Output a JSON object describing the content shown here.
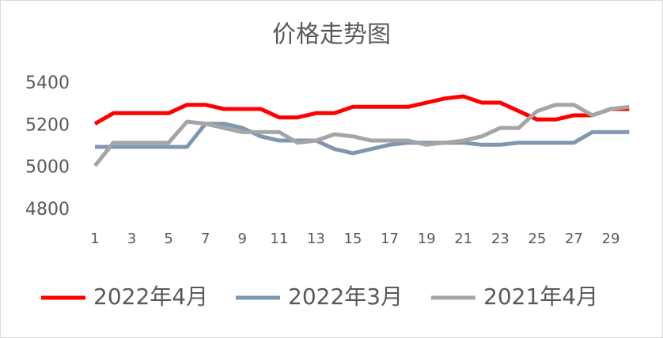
{
  "chart_data": {
    "type": "line",
    "title": "价格走势图",
    "categories": [
      1,
      null,
      3,
      null,
      5,
      null,
      7,
      null,
      9,
      null,
      11,
      null,
      13,
      null,
      15,
      null,
      17,
      null,
      19,
      null,
      21,
      null,
      23,
      null,
      25,
      null,
      27,
      null,
      29,
      null
    ],
    "series": [
      {
        "name": "2022年4月",
        "color": "#ff0000",
        "values": [
          5210,
          5260,
          5260,
          5260,
          5260,
          5300,
          5300,
          5280,
          5280,
          5280,
          5240,
          5240,
          5260,
          5260,
          5290,
          5290,
          5290,
          5290,
          5310,
          5330,
          5340,
          5310,
          5310,
          5270,
          5230,
          5230,
          5250,
          5250,
          5280,
          5280
        ]
      },
      {
        "name": "2022年3月",
        "color": "#7f96b2",
        "values": [
          5100,
          5100,
          5100,
          5100,
          5100,
          5100,
          5210,
          5210,
          5190,
          5150,
          5130,
          5130,
          5130,
          5090,
          5070,
          5090,
          5110,
          5120,
          5120,
          5120,
          5120,
          5110,
          5110,
          5120,
          5120,
          5120,
          5120,
          5170,
          5170,
          5170
        ]
      },
      {
        "name": "2021年4月",
        "color": "#a5a5a5",
        "values": [
          5010,
          5120,
          5120,
          5120,
          5120,
          5220,
          5210,
          5190,
          5170,
          5170,
          5170,
          5120,
          5130,
          5160,
          5150,
          5130,
          5130,
          5130,
          5110,
          5120,
          5130,
          5150,
          5190,
          5190,
          5270,
          5300,
          5300,
          5250,
          5280,
          5290
        ]
      }
    ],
    "ylim": [
      4800,
      5400
    ],
    "yticks": [
      4800,
      5000,
      5200,
      5400
    ],
    "grid": false,
    "legend": "bottom"
  }
}
